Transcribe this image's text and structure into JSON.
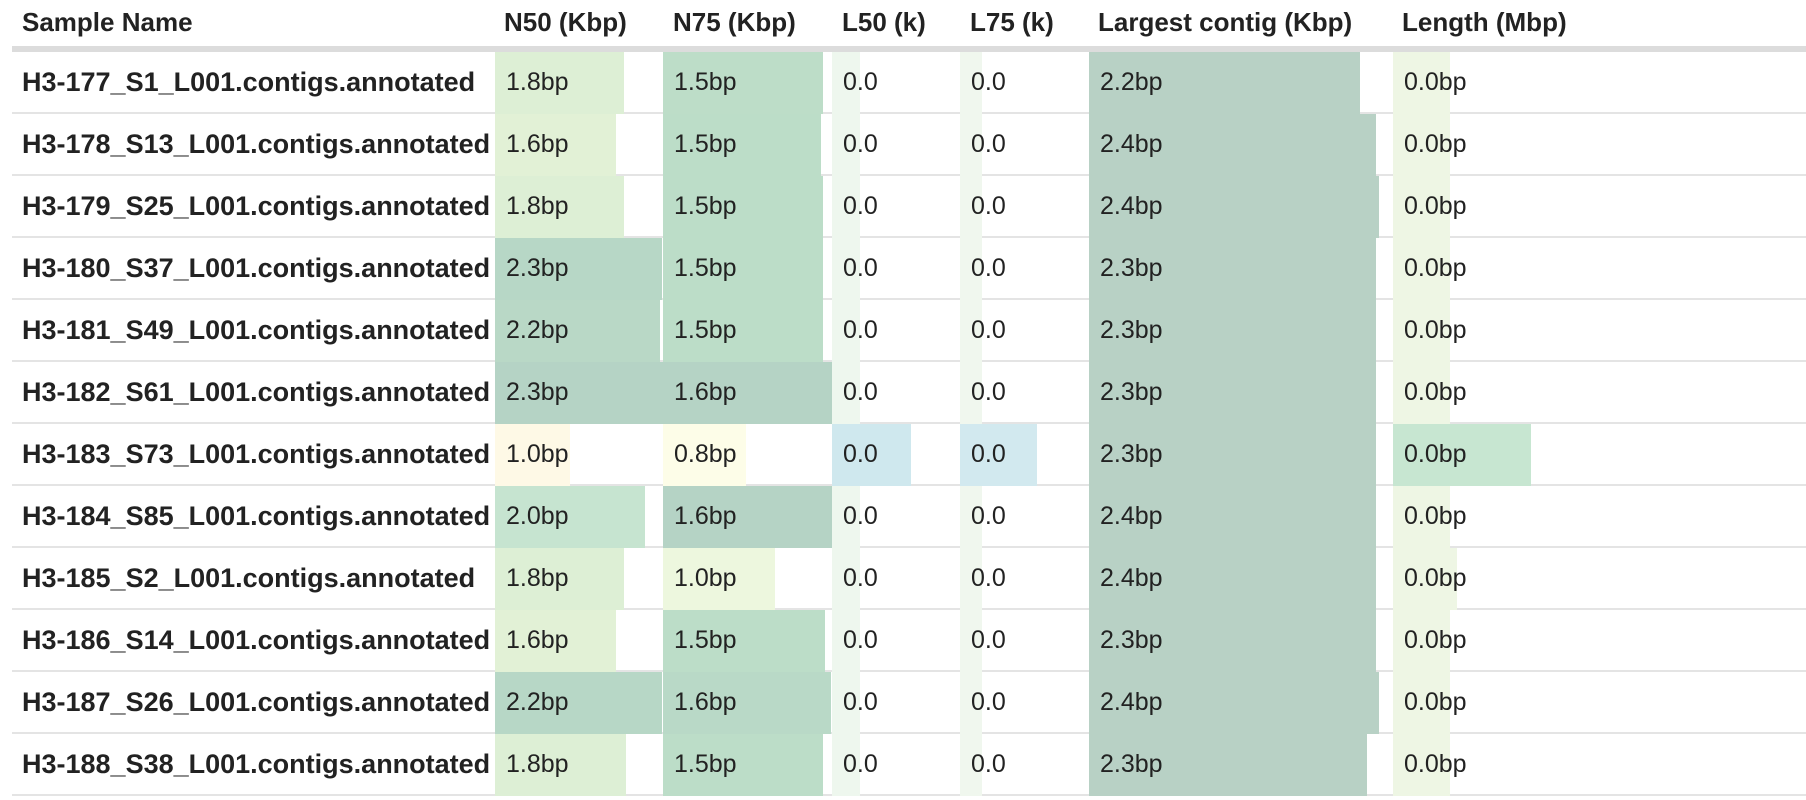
{
  "headers": {
    "sample_name": "Sample Name",
    "n50": "N50 (Kbp)",
    "n75": "N75 (Kbp)",
    "l50": "L50 (k)",
    "l75": "L75 (k)",
    "largest": "Largest contig (Kbp)",
    "length": "Length (Mbp)"
  },
  "rows": [
    {
      "name": "H3-177_S1_L001.contigs.annotated",
      "n50": {
        "text": "1.8bp",
        "fill": 0.76,
        "color": "#ddefd5"
      },
      "n75": {
        "text": "1.5bp",
        "fill": 0.94,
        "color": "#bdddc8"
      },
      "l50": {
        "text": "0.0",
        "fill": 0.34,
        "color": "#eef7ee"
      },
      "l75": {
        "text": "0.0",
        "fill": 0.17,
        "color": "#f0f7ee"
      },
      "largest": {
        "text": "2.2bp",
        "fill": 0.89,
        "color": "#b8d1c5"
      },
      "length": {
        "text": "0.0bp",
        "fill": 0.34,
        "color": "#eef6e4"
      }
    },
    {
      "name": "H3-178_S13_L001.contigs.annotated",
      "n50": {
        "text": "1.6bp",
        "fill": 0.71,
        "color": "#e2f1d6"
      },
      "n75": {
        "text": "1.5bp",
        "fill": 0.93,
        "color": "#bcddc8"
      },
      "l50": {
        "text": "0.0",
        "fill": 0.34,
        "color": "#eef7ee"
      },
      "l75": {
        "text": "0.0",
        "fill": 0.17,
        "color": "#f0f7ee"
      },
      "largest": {
        "text": "2.4bp",
        "fill": 0.94,
        "color": "#b8d1c5"
      },
      "length": {
        "text": "0.0bp",
        "fill": 0.34,
        "color": "#eef6e4"
      }
    },
    {
      "name": "H3-179_S25_L001.contigs.annotated",
      "n50": {
        "text": "1.8bp",
        "fill": 0.76,
        "color": "#ddefd5"
      },
      "n75": {
        "text": "1.5bp",
        "fill": 0.94,
        "color": "#bcddc8"
      },
      "l50": {
        "text": "0.0",
        "fill": 0.34,
        "color": "#eef7ee"
      },
      "l75": {
        "text": "0.0",
        "fill": 0.17,
        "color": "#f0f7ee"
      },
      "largest": {
        "text": "2.4bp",
        "fill": 0.95,
        "color": "#b8d1c5"
      },
      "length": {
        "text": "0.0bp",
        "fill": 0.34,
        "color": "#eef6e4"
      }
    },
    {
      "name": "H3-180_S37_L001.contigs.annotated",
      "n50": {
        "text": "2.3bp",
        "fill": 0.98,
        "color": "#b7d7c6"
      },
      "n75": {
        "text": "1.5bp",
        "fill": 0.94,
        "color": "#bcddc8"
      },
      "l50": {
        "text": "0.0",
        "fill": 0.34,
        "color": "#eef7ee"
      },
      "l75": {
        "text": "0.0",
        "fill": 0.17,
        "color": "#f0f7ee"
      },
      "largest": {
        "text": "2.3bp",
        "fill": 0.94,
        "color": "#b8d1c5"
      },
      "length": {
        "text": "0.0bp",
        "fill": 0.34,
        "color": "#eef6e4"
      }
    },
    {
      "name": "H3-181_S49_L001.contigs.annotated",
      "n50": {
        "text": "2.2bp",
        "fill": 0.97,
        "color": "#b9d8c6"
      },
      "n75": {
        "text": "1.5bp",
        "fill": 0.94,
        "color": "#bcddc8"
      },
      "l50": {
        "text": "0.0",
        "fill": 0.34,
        "color": "#eef7ee"
      },
      "l75": {
        "text": "0.0",
        "fill": 0.17,
        "color": "#f0f7ee"
      },
      "largest": {
        "text": "2.3bp",
        "fill": 0.94,
        "color": "#b8d1c5"
      },
      "length": {
        "text": "0.0bp",
        "fill": 0.34,
        "color": "#eef6e4"
      }
    },
    {
      "name": "H3-182_S61_L001.contigs.annotated",
      "n50": {
        "text": "2.3bp",
        "fill": 1.0,
        "color": "#b5d3c5"
      },
      "n75": {
        "text": "1.6bp",
        "fill": 1.0,
        "color": "#b5d3c5"
      },
      "l50": {
        "text": "0.0",
        "fill": 0.34,
        "color": "#eef7ee"
      },
      "l75": {
        "text": "0.0",
        "fill": 0.17,
        "color": "#f0f7ee"
      },
      "largest": {
        "text": "2.3bp",
        "fill": 0.94,
        "color": "#b8d1c5"
      },
      "length": {
        "text": "0.0bp",
        "fill": 0.34,
        "color": "#eef6e4"
      }
    },
    {
      "name": "H3-183_S73_L001.contigs.annotated",
      "n50": {
        "text": "1.0bp",
        "fill": 0.44,
        "color": "#fef9e6"
      },
      "n75": {
        "text": "0.8bp",
        "fill": 0.49,
        "color": "#fdfde8"
      },
      "l50": {
        "text": "0.0",
        "fill": 0.96,
        "color": "#cfe8ee"
      },
      "l75": {
        "text": "0.0",
        "fill": 0.59,
        "color": "#d2e9ef"
      },
      "largest": {
        "text": "2.3bp",
        "fill": 0.94,
        "color": "#b8d1c5"
      },
      "length": {
        "text": "0.0bp",
        "fill": 0.82,
        "color": "#c7e6d1"
      }
    },
    {
      "name": "H3-184_S85_L001.contigs.annotated",
      "n50": {
        "text": "2.0bp",
        "fill": 0.88,
        "color": "#c6e4d0"
      },
      "n75": {
        "text": "1.6bp",
        "fill": 1.0,
        "color": "#b5d3c5"
      },
      "l50": {
        "text": "0.0",
        "fill": 0.34,
        "color": "#eef7ee"
      },
      "l75": {
        "text": "0.0",
        "fill": 0.17,
        "color": "#f0f7ee"
      },
      "largest": {
        "text": "2.4bp",
        "fill": 0.94,
        "color": "#b8d1c5"
      },
      "length": {
        "text": "0.0bp",
        "fill": 0.34,
        "color": "#eef6e4"
      }
    },
    {
      "name": "H3-185_S2_L001.contigs.annotated",
      "n50": {
        "text": "1.8bp",
        "fill": 0.76,
        "color": "#ddefd5"
      },
      "n75": {
        "text": "1.0bp",
        "fill": 0.66,
        "color": "#edf7de"
      },
      "l50": {
        "text": "0.0",
        "fill": 0.34,
        "color": "#eef7ee"
      },
      "l75": {
        "text": "0.0",
        "fill": 0.17,
        "color": "#f0f7ee"
      },
      "largest": {
        "text": "2.4bp",
        "fill": 0.94,
        "color": "#b8d1c5"
      },
      "length": {
        "text": "0.0bp",
        "fill": 0.38,
        "color": "#eef6e4"
      }
    },
    {
      "name": "H3-186_S14_L001.contigs.annotated",
      "n50": {
        "text": "1.6bp",
        "fill": 0.71,
        "color": "#e2f1d6"
      },
      "n75": {
        "text": "1.5bp",
        "fill": 0.95,
        "color": "#bcddc8"
      },
      "l50": {
        "text": "0.0",
        "fill": 0.34,
        "color": "#eef7ee"
      },
      "l75": {
        "text": "0.0",
        "fill": 0.17,
        "color": "#f0f7ee"
      },
      "largest": {
        "text": "2.3bp",
        "fill": 0.94,
        "color": "#b8d1c5"
      },
      "length": {
        "text": "0.0bp",
        "fill": 0.34,
        "color": "#eef6e4"
      }
    },
    {
      "name": "H3-187_S26_L001.contigs.annotated",
      "n50": {
        "text": "2.2bp",
        "fill": 0.98,
        "color": "#b7d7c6"
      },
      "n75": {
        "text": "1.6bp",
        "fill": 0.99,
        "color": "#b9d9c7"
      },
      "l50": {
        "text": "0.0",
        "fill": 0.34,
        "color": "#eef7ee"
      },
      "l75": {
        "text": "0.0",
        "fill": 0.17,
        "color": "#f0f7ee"
      },
      "largest": {
        "text": "2.4bp",
        "fill": 0.95,
        "color": "#b8d1c5"
      },
      "length": {
        "text": "0.0bp",
        "fill": 0.34,
        "color": "#eef6e4"
      }
    },
    {
      "name": "H3-188_S38_L001.contigs.annotated",
      "n50": {
        "text": "1.8bp",
        "fill": 0.77,
        "color": "#ddefd5"
      },
      "n75": {
        "text": "1.5bp",
        "fill": 0.94,
        "color": "#bcddc8"
      },
      "l50": {
        "text": "0.0",
        "fill": 0.34,
        "color": "#eef7ee"
      },
      "l75": {
        "text": "0.0",
        "fill": 0.17,
        "color": "#f0f7ee"
      },
      "largest": {
        "text": "2.3bp",
        "fill": 0.91,
        "color": "#b8d1c5"
      },
      "length": {
        "text": "0.0bp",
        "fill": 0.34,
        "color": "#eef6e4"
      }
    }
  ]
}
